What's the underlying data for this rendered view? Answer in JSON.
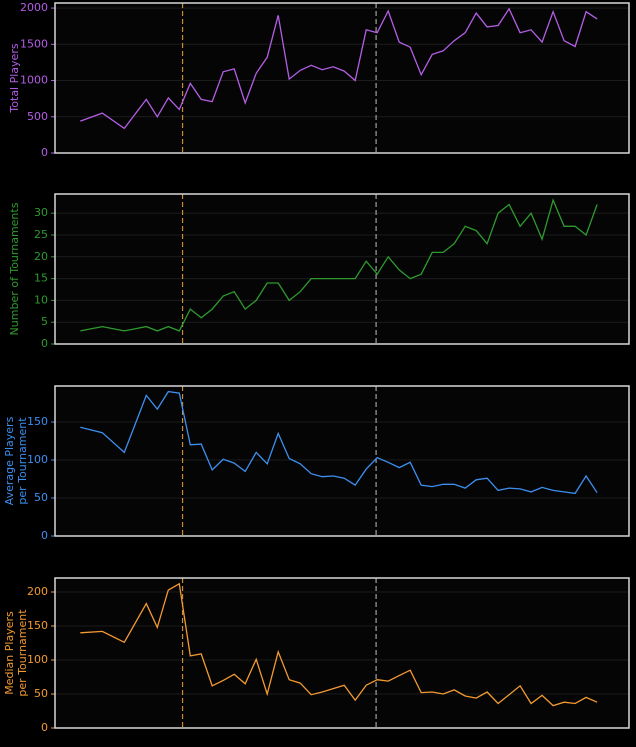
{
  "chart_data": [
    {
      "type": "line",
      "ylabel": [
        "Total Players"
      ],
      "color": "#b45ee6",
      "x": [
        0,
        2,
        4,
        6,
        7,
        8,
        9,
        10,
        11,
        12,
        13,
        14,
        15,
        16,
        17,
        18,
        19,
        20,
        21,
        22,
        23,
        24,
        25,
        26,
        27,
        28,
        29,
        30,
        31,
        32,
        33,
        34,
        35,
        36,
        37,
        38,
        39,
        40,
        41,
        42,
        43,
        44,
        45,
        46,
        47
      ],
      "values": [
        440,
        550,
        340,
        740,
        500,
        760,
        600,
        960,
        740,
        710,
        1120,
        1160,
        690,
        1100,
        1320,
        1900,
        1020,
        1140,
        1210,
        1150,
        1190,
        1130,
        1000,
        1700,
        1660,
        1960,
        1530,
        1460,
        1080,
        1360,
        1410,
        1550,
        1660,
        1930,
        1740,
        1760,
        1990,
        1660,
        1700,
        1530,
        1950,
        1550,
        1470,
        1950,
        1850
      ],
      "xlim": [
        -2.3,
        49.9
      ],
      "ylim": [
        0,
        2070
      ],
      "yticks": [
        0,
        500,
        1000,
        1500,
        2000
      ],
      "grid": true,
      "vlines": [
        {
          "x": 9.3,
          "color": "#c8903a"
        },
        {
          "x": 26.9,
          "color": "#a0a0a0"
        }
      ]
    },
    {
      "type": "line",
      "ylabel": [
        "Number of Tournaments"
      ],
      "color": "#2f9a2f",
      "x": [
        0,
        2,
        4,
        6,
        7,
        8,
        9,
        10,
        11,
        12,
        13,
        14,
        15,
        16,
        17,
        18,
        19,
        20,
        21,
        22,
        23,
        24,
        25,
        26,
        27,
        28,
        29,
        30,
        31,
        32,
        33,
        34,
        35,
        36,
        37,
        38,
        39,
        40,
        41,
        42,
        43,
        44,
        45,
        46,
        47
      ],
      "values": [
        3,
        4,
        3,
        4,
        3,
        4,
        3,
        8,
        6,
        8,
        11,
        12,
        8,
        10,
        14,
        14,
        10,
        12,
        15,
        15,
        15,
        15,
        15,
        19,
        16,
        20,
        17,
        15,
        16,
        21,
        21,
        23,
        27,
        26,
        23,
        30,
        32,
        27,
        30,
        24,
        33,
        27,
        27,
        25,
        32
      ],
      "xlim": [
        -2.3,
        49.9
      ],
      "ylim": [
        0,
        34.4
      ],
      "yticks": [
        0,
        5,
        10,
        15,
        20,
        25,
        30
      ],
      "grid": true,
      "vlines": [
        {
          "x": 9.3,
          "color": "#c8903a"
        },
        {
          "x": 26.9,
          "color": "#a0a0a0"
        }
      ]
    },
    {
      "type": "line",
      "ylabel": [
        "Average Players",
        "per Tournament"
      ],
      "color": "#3d8ff0",
      "x": [
        0,
        2,
        4,
        6,
        7,
        8,
        9,
        10,
        11,
        12,
        13,
        14,
        15,
        16,
        17,
        18,
        19,
        20,
        21,
        22,
        23,
        24,
        25,
        26,
        27,
        28,
        29,
        30,
        31,
        32,
        33,
        34,
        35,
        36,
        37,
        38,
        39,
        40,
        41,
        42,
        43,
        44,
        45,
        46,
        47
      ],
      "values": [
        143,
        136,
        110,
        185,
        167,
        190,
        188,
        120,
        121,
        87,
        101,
        96,
        85,
        110,
        95,
        135,
        102,
        95,
        82,
        78,
        79,
        76,
        67,
        88,
        103,
        97,
        90,
        97,
        67,
        65,
        68,
        68,
        63,
        74,
        76,
        60,
        63,
        62,
        58,
        64,
        60,
        58,
        56,
        79,
        57
      ],
      "xlim": [
        -2.3,
        49.9
      ],
      "ylim": [
        0,
        197.4
      ],
      "yticks": [
        0,
        50,
        100,
        150
      ],
      "grid": true,
      "vlines": [
        {
          "x": 9.3,
          "color": "#c8903a"
        },
        {
          "x": 26.9,
          "color": "#a0a0a0"
        }
      ]
    },
    {
      "type": "line",
      "ylabel": [
        "Median Players",
        "per Tournament"
      ],
      "color": "#f39a32",
      "x": [
        0,
        2,
        4,
        6,
        7,
        8,
        9,
        10,
        11,
        12,
        13,
        14,
        15,
        16,
        17,
        18,
        19,
        20,
        21,
        22,
        23,
        24,
        25,
        26,
        27,
        28,
        29,
        30,
        31,
        32,
        33,
        34,
        35,
        36,
        37,
        38,
        39,
        40,
        41,
        42,
        43,
        44,
        45,
        46,
        47
      ],
      "values": [
        140,
        142,
        126,
        183,
        148,
        203,
        212,
        106,
        109,
        62,
        70,
        79,
        65,
        101,
        50,
        112,
        71,
        66,
        49,
        53,
        58,
        63,
        41,
        63,
        71,
        69,
        77,
        85,
        52,
        53,
        50,
        56,
        47,
        44,
        53,
        36,
        49,
        62,
        36,
        48,
        33,
        38,
        36,
        45,
        38
      ],
      "xlim": [
        -2.3,
        49.9
      ],
      "ylim": [
        0,
        220.6
      ],
      "yticks": [
        0,
        50,
        100,
        150,
        200
      ],
      "grid": true,
      "vlines": [
        {
          "x": 9.3,
          "color": "#c8903a"
        },
        {
          "x": 26.9,
          "color": "#a0a0a0"
        }
      ]
    }
  ]
}
